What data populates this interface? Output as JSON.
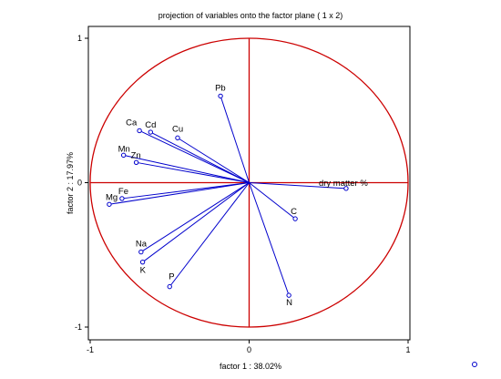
{
  "chart_data": {
    "type": "scatter",
    "title": "projection of variables onto the factor plane   ( 1 x  2)",
    "xlabel": "factor 1 : 38.02%",
    "ylabel": "factor 2 : 17.97%",
    "xlim": [
      -1,
      1
    ],
    "ylim": [
      -1,
      1
    ],
    "xticks": [
      "-1",
      "0",
      "1"
    ],
    "yticks": [
      "1",
      "0",
      "-1"
    ],
    "unit_circle": true,
    "grid": false,
    "variables": [
      {
        "label": "Pb",
        "x": -0.18,
        "y": 0.6
      },
      {
        "label": "Ca",
        "x": -0.69,
        "y": 0.36
      },
      {
        "label": "Cd",
        "x": -0.62,
        "y": 0.35
      },
      {
        "label": "Cu",
        "x": -0.45,
        "y": 0.31
      },
      {
        "label": "Mn",
        "x": -0.79,
        "y": 0.19
      },
      {
        "label": "Zn",
        "x": -0.71,
        "y": 0.14
      },
      {
        "label": "dry  matter %",
        "x": 0.61,
        "y": -0.04
      },
      {
        "label": "Fe",
        "x": -0.8,
        "y": -0.11
      },
      {
        "label": "Mg",
        "x": -0.88,
        "y": -0.15
      },
      {
        "label": "C",
        "x": 0.29,
        "y": -0.25
      },
      {
        "label": "Na",
        "x": -0.68,
        "y": -0.48
      },
      {
        "label": "K",
        "x": -0.67,
        "y": -0.55
      },
      {
        "label": "P",
        "x": -0.5,
        "y": -0.72
      },
      {
        "label": "N",
        "x": 0.25,
        "y": -0.78
      }
    ],
    "colors": {
      "vectors": "#0000cc",
      "circle": "#cc0000",
      "axes": "#cc0000",
      "frame": "#000000"
    }
  }
}
